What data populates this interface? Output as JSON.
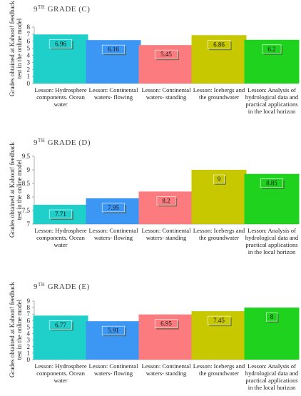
{
  "chart_data": [
    {
      "type": "bar",
      "title_main": "9",
      "title_sup": "TH",
      "title_rest": " GRADE (C)",
      "ylabel": [
        "Grades obtained at Kahoot! feedback",
        "test in the online model"
      ],
      "ylim": [
        0,
        8
      ],
      "yticks": [
        0,
        1,
        2,
        3,
        4,
        5,
        6,
        7,
        8
      ],
      "categories": [
        [
          "Lesson: Hydrosphere",
          "components. Ocean",
          "water"
        ],
        [
          "Lesson: Continental",
          "waters- flowing"
        ],
        [
          "Lesson: Continental",
          "waters- standing"
        ],
        [
          "Lesson: Icebergs and",
          "the groundwater"
        ],
        [
          "Lesson: Analysis of",
          "hydrological data and",
          "practical applications",
          "in the local horizon"
        ]
      ],
      "values": [
        6.96,
        6.16,
        5.45,
        6.86,
        6.2
      ],
      "value_labels": [
        "6.96",
        "6.16",
        "5.45",
        "6.86",
        "6.2"
      ],
      "colors": [
        "#1fcfc9",
        "#3c96f4",
        "#fb7b7e",
        "#c8c800",
        "#1ed21e"
      ],
      "grid": false
    },
    {
      "type": "bar",
      "title_main": "9",
      "title_sup": "TH",
      "title_rest": " GRADE (D)",
      "ylabel": [
        "Grades obtained at Kahoot! feedback",
        "test in the online model"
      ],
      "ylim": [
        7,
        9.5
      ],
      "yticks": [
        7,
        7.5,
        8,
        8.5,
        9,
        9.5
      ],
      "categories": [
        [
          "Lesson: Hydrosphere",
          "components. Ocean",
          "water"
        ],
        [
          "Lesson: Continental",
          "waters- flowing"
        ],
        [
          "Lesson: Continental",
          "waters- standing"
        ],
        [
          "Lesson: Icebergs and",
          "the groundwater"
        ],
        [
          "Lesson: Analysis of",
          "hydrological data and",
          "practical applications",
          "in the local horizon"
        ]
      ],
      "values": [
        7.71,
        7.95,
        8.2,
        9,
        8.85
      ],
      "value_labels": [
        "7.71",
        "7.95",
        "8.2",
        "9",
        "8.85"
      ],
      "colors": [
        "#1fcfc9",
        "#3c96f4",
        "#fb7b7e",
        "#c8c800",
        "#1ed21e"
      ],
      "grid": false
    },
    {
      "type": "bar",
      "title_main": "9",
      "title_sup": "TH",
      "title_rest": " GRADE (E)",
      "ylabel": [
        "Grades obtained at Kahoot! feedback",
        "test in the online model"
      ],
      "ylim": [
        0,
        9
      ],
      "yticks": [
        0,
        1,
        2,
        3,
        4,
        5,
        6,
        7,
        8,
        9
      ],
      "categories": [
        [
          "Lesson: Hydrosphere",
          "components. Ocean",
          "water"
        ],
        [
          "Lesson: Continental",
          "waters- flowing"
        ],
        [
          "Lesson: Continental",
          "waters- standing"
        ],
        [
          "Lesson: Icebergs and",
          "the groundwater"
        ],
        [
          "Lesson: Analysis of",
          "hydrological data and",
          "practical applications",
          "in the local horizon"
        ]
      ],
      "values": [
        6.77,
        5.91,
        6.95,
        7.45,
        8
      ],
      "value_labels": [
        "6.77",
        "5.91",
        "6.95",
        "7.45",
        "8"
      ],
      "colors": [
        "#1fcfc9",
        "#3c96f4",
        "#fb7b7e",
        "#c8c800",
        "#1ed21e"
      ],
      "grid": false
    }
  ]
}
